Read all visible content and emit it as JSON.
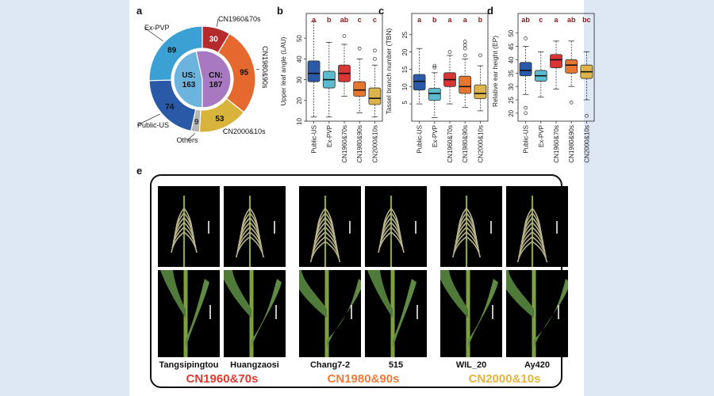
{
  "panels": {
    "a": "a",
    "b": "b",
    "c": "c",
    "d": "d",
    "e": "e"
  },
  "chart_data": [
    {
      "type": "pie",
      "panel": "a",
      "inner": [
        {
          "label": "US:",
          "value": 163,
          "color": "#6cb4de"
        },
        {
          "label": "CN:",
          "value": 187,
          "color": "#a878c0"
        }
      ],
      "outer": [
        {
          "label": "CN1960&70s",
          "value": 30,
          "color": "#b52a2c"
        },
        {
          "label": "CN1980&90s",
          "value": 95,
          "color": "#e5692e"
        },
        {
          "label": "CN2000&10s",
          "value": 53,
          "color": "#d9b43c"
        },
        {
          "label": "Others",
          "value": 9,
          "color": "#b5b5b5"
        },
        {
          "label": "Public-US",
          "value": 74,
          "color": "#2a59a8"
        },
        {
          "label": "Ex-PVP",
          "value": 89,
          "color": "#3ba0d4"
        }
      ]
    },
    {
      "type": "box",
      "panel": "b",
      "ylabel": "Upper leaf angle (LAU)",
      "ylim": [
        10,
        55
      ],
      "yticks": [
        10,
        20,
        30,
        40,
        50
      ],
      "categories": [
        "Public-US",
        "Ex-PVP",
        "CN1960&70s",
        "CN1980&90s",
        "CN2000&10s"
      ],
      "letters": [
        "a",
        "b",
        "ab",
        "c",
        "c"
      ],
      "boxes": [
        {
          "min": 12,
          "q1": 29,
          "median": 33,
          "q3": 39,
          "max": 58,
          "outliers": []
        },
        {
          "min": 12,
          "q1": 26,
          "median": 30,
          "q3": 34,
          "max": 48,
          "outliers": []
        },
        {
          "min": 22,
          "q1": 29,
          "median": 33,
          "q3": 37,
          "max": 47,
          "outliers": [
            51
          ]
        },
        {
          "min": 14,
          "q1": 22,
          "median": 25,
          "q3": 29,
          "max": 40,
          "outliers": [
            45
          ]
        },
        {
          "min": 12,
          "q1": 18,
          "median": 21,
          "q3": 26,
          "max": 37,
          "outliers": [
            44,
            40
          ]
        }
      ],
      "colors": [
        "#2a59a8",
        "#5bbcd0",
        "#d93535",
        "#e8762e",
        "#ddb44c"
      ]
    },
    {
      "type": "box",
      "panel": "c",
      "ylabel": "Tassel branch number (TBN)",
      "ylim": [
        0,
        27
      ],
      "yticks": [
        5,
        10,
        15,
        20,
        25
      ],
      "categories": [
        "Public-US",
        "Ex-PVP",
        "CN1960&70s",
        "CN1980&90s",
        "CN2000&10s"
      ],
      "letters": [
        "a",
        "b",
        "a",
        "a",
        "b"
      ],
      "boxes": [
        {
          "min": 5,
          "q1": 9,
          "median": 11.5,
          "q3": 13.5,
          "max": 21,
          "outliers": []
        },
        {
          "min": 1,
          "q1": 6,
          "median": 8,
          "q3": 9.5,
          "max": 14,
          "outliers": [
            15.5,
            16
          ]
        },
        {
          "min": 5,
          "q1": 10,
          "median": 12,
          "q3": 14,
          "max": 19,
          "outliers": [
            20
          ]
        },
        {
          "min": 4,
          "q1": 8,
          "median": 10,
          "q3": 13,
          "max": 18,
          "outliers": [
            19,
            21,
            22,
            23
          ]
        },
        {
          "min": 3,
          "q1": 6.5,
          "median": 8,
          "q3": 10.5,
          "max": 16,
          "outliers": [
            19
          ]
        }
      ],
      "colors": [
        "#2a59a8",
        "#5bbcd0",
        "#d93535",
        "#e8762e",
        "#ddb44c"
      ]
    },
    {
      "type": "box",
      "panel": "d",
      "ylabel": "Relative ear height (EP)",
      "ylim": [
        17,
        52
      ],
      "yticks": [
        20,
        25,
        30,
        35,
        40,
        45,
        50
      ],
      "categories": [
        "Public-US",
        "Ex-PVP",
        "CN1960&70s",
        "CN1980&90s",
        "CN2000&10s"
      ],
      "letters": [
        "ab",
        "c",
        "a",
        "ab",
        "bc"
      ],
      "boxes": [
        {
          "min": 27,
          "q1": 34,
          "median": 36,
          "q3": 39,
          "max": 45,
          "outliers": [
            22,
            20,
            48
          ]
        },
        {
          "min": 26,
          "q1": 32,
          "median": 34,
          "q3": 36,
          "max": 43,
          "outliers": []
        },
        {
          "min": 29,
          "q1": 37,
          "median": 40,
          "q3": 42,
          "max": 47,
          "outliers": []
        },
        {
          "min": 30,
          "q1": 35,
          "median": 38,
          "q3": 40,
          "max": 47,
          "outliers": [
            24
          ]
        },
        {
          "min": 25,
          "q1": 33,
          "median": 35.5,
          "q3": 38,
          "max": 43,
          "outliers": [
            19
          ]
        }
      ],
      "colors": [
        "#2a59a8",
        "#5bbcd0",
        "#d93535",
        "#e8762e",
        "#ddb44c"
      ]
    }
  ],
  "panel_e": {
    "varieties": [
      "Tangsipingtou",
      "Huangzaosi",
      "Chang7-2",
      "515",
      "WIL_20",
      "Ay420"
    ],
    "eras": [
      {
        "label": "CN1960&70s",
        "color": "#e03a2e"
      },
      {
        "label": "CN1980&90s",
        "color": "#ee7c3a"
      },
      {
        "label": "CN2000&10s",
        "color": "#e3b53e"
      }
    ]
  }
}
